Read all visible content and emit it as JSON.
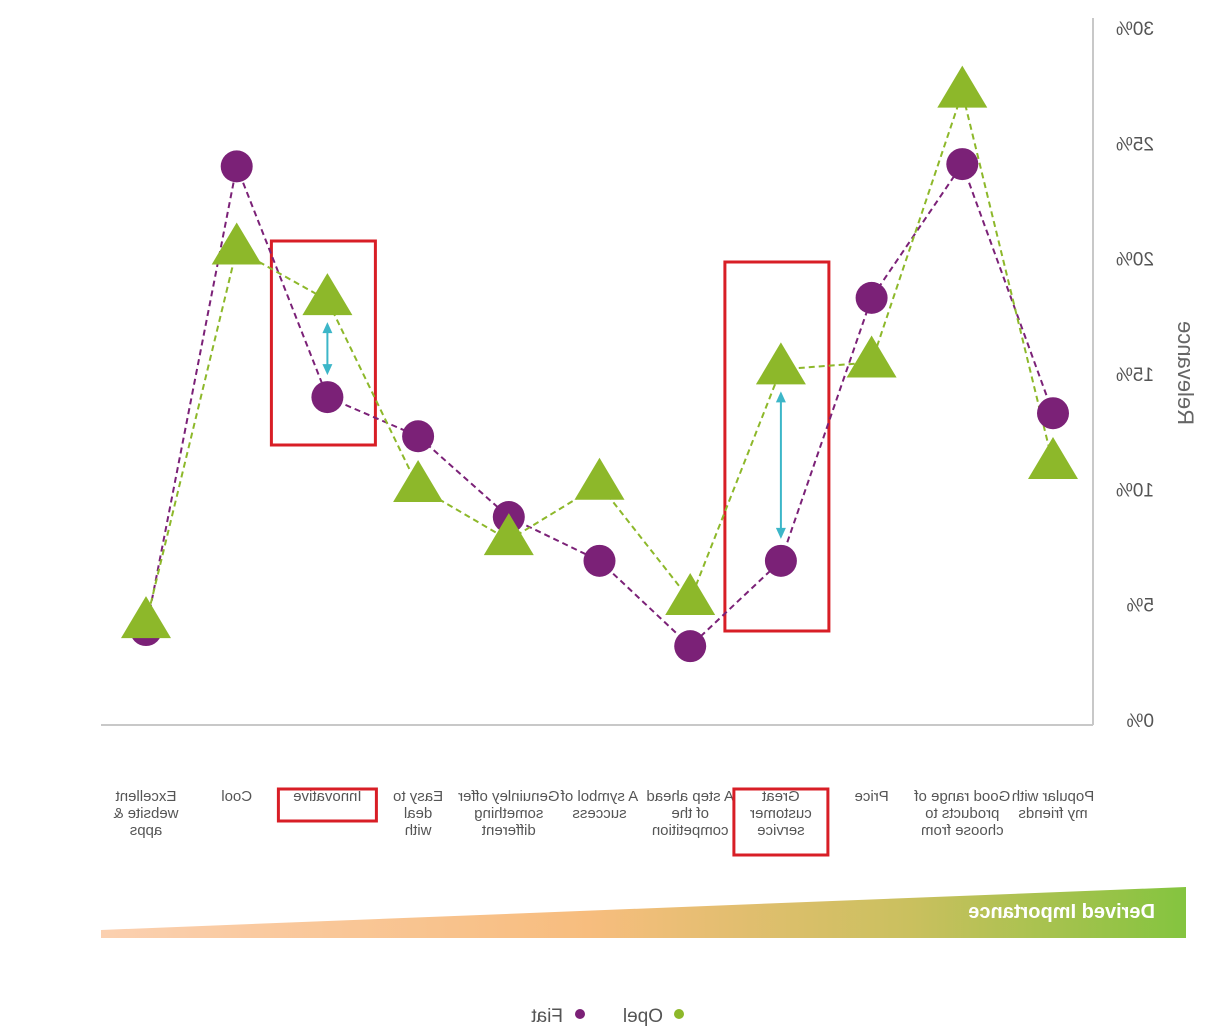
{
  "chart_data": {
    "type": "line",
    "mirrored": true,
    "categories": [
      "Excellent website & apps",
      "Cool",
      "Innovative",
      "Easy to deal with",
      "Genuinley offer something different",
      "A symbol of success",
      "A step ahead of the competition",
      "Great customer service",
      "Price",
      "Good range of products to choose from",
      "Popular with my friends"
    ],
    "category_lines": [
      [
        "Excellent",
        "website &",
        "apps"
      ],
      [
        "Cool"
      ],
      [
        "Innovative"
      ],
      [
        "Easy to",
        "deal",
        "with"
      ],
      [
        "Genuinley offer",
        "something",
        "different"
      ],
      [
        "A symbol of",
        "success"
      ],
      [
        "A step ahead",
        "of the",
        "competition"
      ],
      [
        "Great",
        "customer",
        "service"
      ],
      [
        "Price"
      ],
      [
        "Good range of",
        "products to",
        "choose from"
      ],
      [
        "Popular with",
        "my friends"
      ]
    ],
    "highlighted_categories": [
      "Innovative",
      "Great customer service"
    ],
    "series": [
      {
        "name": "Fiat",
        "marker": "circle",
        "color": "#7B2177",
        "values": [
          3.9,
          24.0,
          14.0,
          12.3,
          8.8,
          6.9,
          3.2,
          6.9,
          18.3,
          24.1,
          13.3
        ]
      },
      {
        "name": "Opel",
        "marker": "triangle",
        "color": "#8DB82A",
        "values": [
          4.2,
          20.4,
          18.2,
          10.1,
          7.8,
          10.2,
          5.2,
          15.2,
          15.5,
          27.2,
          11.1
        ]
      }
    ],
    "ylabel": "Relevance",
    "ylim": [
      0,
      30
    ],
    "yticks": [
      "0%",
      "5%",
      "10%",
      "15%",
      "20%",
      "25%",
      "30%"
    ],
    "yaxis_side": "right",
    "gap_arrows": [
      "Innovative",
      "Great customer service"
    ],
    "banner_label": "Derived Importance",
    "legend_position": "bottom",
    "grid": false
  }
}
